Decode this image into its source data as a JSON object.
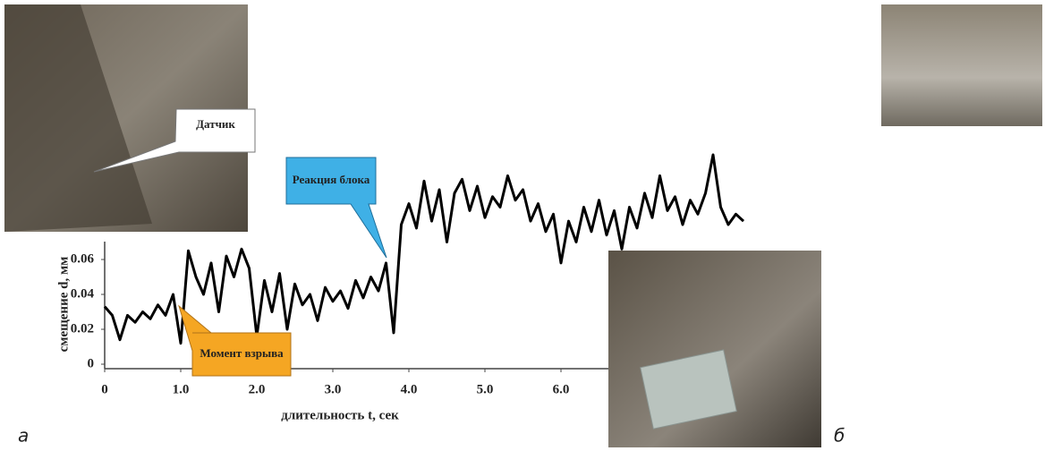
{
  "chart_data": {
    "type": "line",
    "xlabel": "длительность t, сек",
    "ylabel": "смещение d, мм",
    "annotations": [
      "Датчик",
      "Реакция блока",
      "Момент взрыва"
    ],
    "panel_labels": [
      "а",
      "б"
    ],
    "color": "#000000",
    "x": [
      0.0,
      0.1,
      0.2,
      0.3,
      0.4,
      0.5,
      0.6,
      0.7,
      0.8,
      0.9,
      1.0,
      1.1,
      1.2,
      1.3,
      1.4,
      1.5,
      1.6,
      1.7,
      1.8,
      1.9,
      2.0,
      2.1,
      2.2,
      2.3,
      2.4,
      2.5,
      2.6,
      2.7,
      2.8,
      2.9,
      3.0,
      3.1,
      3.2,
      3.3,
      3.4,
      3.5,
      3.6,
      3.7,
      3.8,
      3.9,
      4.0,
      4.1,
      4.2,
      4.3,
      4.4,
      4.5,
      4.6,
      4.7,
      4.8,
      4.9,
      5.0,
      5.1,
      5.2,
      5.3,
      5.4,
      5.5,
      5.6,
      5.7,
      5.8,
      5.9,
      6.0,
      6.1,
      6.2,
      6.3,
      6.4,
      6.5,
      6.6,
      6.7,
      6.8,
      6.9,
      7.0,
      7.1,
      7.2,
      7.3,
      7.4,
      7.5,
      7.6,
      7.7,
      7.8,
      7.9,
      8.0,
      8.1,
      8.2,
      8.3,
      8.4
    ],
    "values": [
      0.033,
      0.028,
      0.014,
      0.028,
      0.024,
      0.03,
      0.026,
      0.034,
      0.028,
      0.04,
      0.012,
      0.065,
      0.05,
      0.04,
      0.058,
      0.03,
      0.062,
      0.05,
      0.066,
      0.055,
      0.016,
      0.048,
      0.03,
      0.052,
      0.02,
      0.046,
      0.034,
      0.04,
      0.025,
      0.044,
      0.036,
      0.042,
      0.032,
      0.048,
      0.038,
      0.05,
      0.042,
      0.058,
      0.018,
      0.08,
      0.092,
      0.078,
      0.105,
      0.082,
      0.1,
      0.07,
      0.098,
      0.106,
      0.088,
      0.102,
      0.084,
      0.096,
      0.09,
      0.108,
      0.094,
      0.1,
      0.082,
      0.092,
      0.076,
      0.086,
      0.058,
      0.082,
      0.07,
      0.09,
      0.076,
      0.094,
      0.074,
      0.088,
      0.066,
      0.09,
      0.078,
      0.098,
      0.084,
      0.108,
      0.088,
      0.096,
      0.08,
      0.094,
      0.086,
      0.098,
      0.12,
      0.09,
      0.08,
      0.086,
      0.082
    ],
    "xlim": [
      0,
      8.4
    ],
    "ylim": [
      0,
      0.12
    ],
    "xticks": [
      0,
      {
        "value": 1,
        "label": "1.0"
      },
      {
        "value": 2,
        "label": "2.0"
      },
      {
        "value": 3,
        "label": "3.0"
      },
      {
        "value": 4,
        "label": "4.0"
      },
      {
        "value": 5,
        "label": "5.0"
      },
      {
        "value": 6,
        "label": "6.0"
      }
    ],
    "yticks": [
      0,
      0.02,
      0.04,
      0.06
    ]
  }
}
